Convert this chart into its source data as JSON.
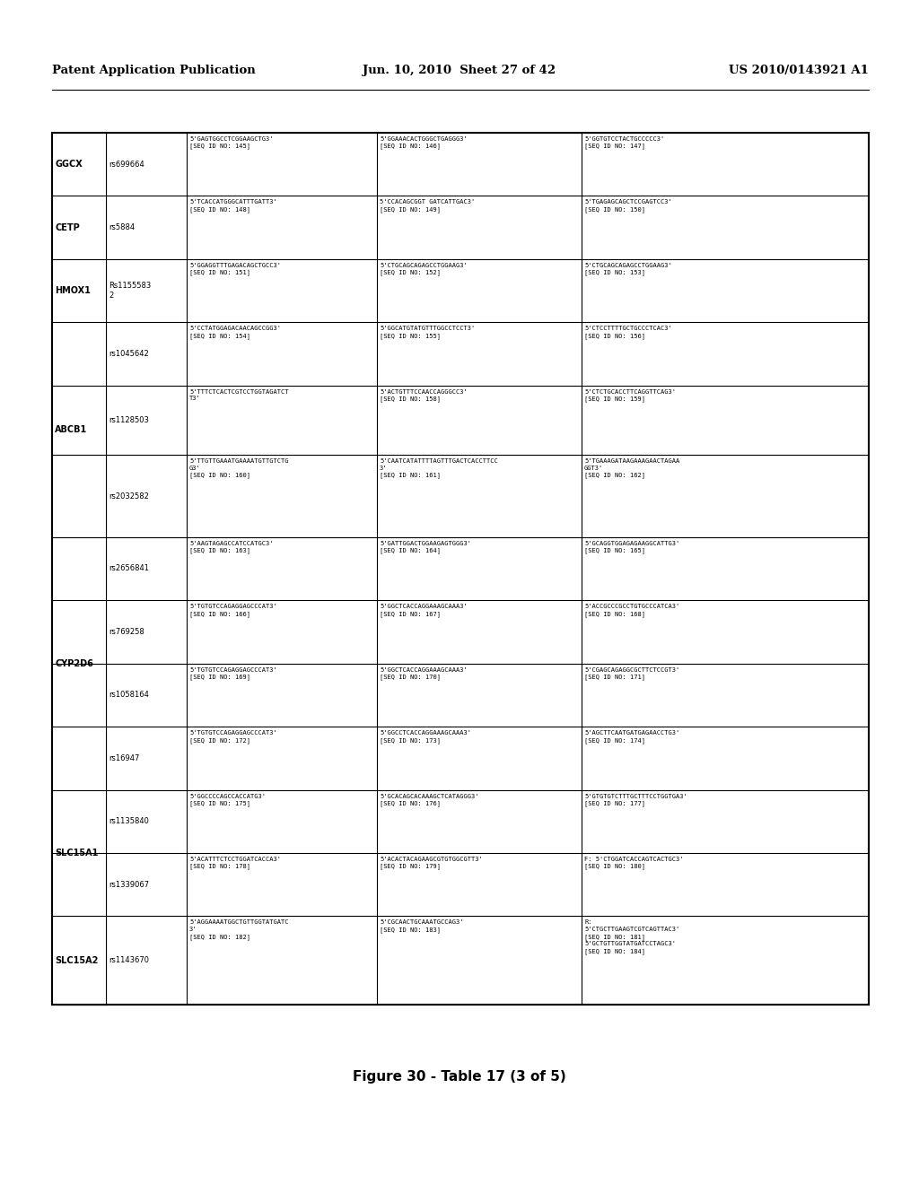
{
  "header_left": "Patent Application Publication",
  "header_center": "Jun. 10, 2010  Sheet 27 of 42",
  "header_right": "US 2010/0143921 A1",
  "figure_caption": "Figure 30 - Table 17 (3 of 5)",
  "bg_color": "#ffffff",
  "text_color": "#000000",
  "table_rows": [
    {
      "gene": "GGCX",
      "snp": "rs699664",
      "c1": "5'GAGTGGCCTCGGAAGCTG3'\n[SEQ ID NO: 145]",
      "c2": "5'GGAAACACTGGGCTGAGGG3'\n[SEQ ID NO: 146]",
      "c3": "5'GGTGTCCTACTGCCCCC3'\n[SEQ ID NO: 147]"
    },
    {
      "gene": "CETP",
      "snp": "rs5884",
      "c1": "5'TCACCATGGGCATTTGATT3'\n[SEQ ID NO: 148]",
      "c2": "5'CCACAGCGGT GATCATTGAC3'\n[SEQ ID NO: 149]",
      "c3": "5'TGAGAGCAGCTCCGAGTCC3'\n[SEQ ID NO: 150]"
    },
    {
      "gene": "HMOX1",
      "snp": "Rs1155583\n2",
      "c1": "5'GGAGGTTTGAGACAGCTGCC3'\n[SEQ ID NO: 151]",
      "c2": "5'CTGCAGCAGAGCCTGGAAG3'\n[SEQ ID NO: 152]",
      "c3": "5'CTGCAGCAGAGCCTGGAAG3'\n[SEQ ID NO: 153]"
    },
    {
      "gene": "ABCB1",
      "snp": "rs1045642",
      "c1": "5'CCTATGGAGACAACAGCCGG3'\n[SEQ ID NO: 154]",
      "c2": "5'GGCATGTATGTTTGGCCTCCT3'\n[SEQ ID NO: 155]",
      "c3": "5'CTCCTTTTGCTGCCCTCAC3'\n[SEQ ID NO: 156]"
    },
    {
      "gene": "",
      "snp": "rs1128503",
      "c1": "5'TTTCTCACTCGTCCTGGTAGATCT\nT3'",
      "c2": "5'ACTGTTTCCAACCAGGGCC3'\n[SEQ ID NO: 158]",
      "c3": "5'CTCTGCACCTTCAGGTTCAG3'\n[SEQ ID NO: 159]"
    },
    {
      "gene": "",
      "snp": "rs2032582",
      "c1": "5'TTGTTGAAATGAAAATGTTGTCTG\nG3'\n[SEQ ID NO: 160]",
      "c2": "5'CAATCATATTTTAGTTTGACTCACCTTCC\n3'\n[SEQ ID NO: 161]",
      "c3": "5'TGAAAGATAAGAAAGAACTAGAA\nGGT3'\n[SEQ ID NO: 162]"
    },
    {
      "gene": "CYP2D6",
      "snp": "rs2656841",
      "c1": "5'AAGTAGAGCCATCCATGC3'\n[SEQ ID NO: 163]",
      "c2": "5'GATTGGACTGGAAGAGTGGG3'\n[SEQ ID NO: 164]",
      "c3": "5'GCAGGTGGAGAGAAGGCATTG3'\n[SEQ ID NO: 165]"
    },
    {
      "gene": "",
      "snp": "rs769258",
      "c1": "5'TGTGTCCAGAGGAGCCCAT3'\n[SEQ ID NO: 166]",
      "c2": "5'GGCTCACCAGGAAAGCAAA3'\n[SEQ ID NO: 167]",
      "c3": "5'ACCGCCCGCCTGTGCCCATCA3'\n[SEQ ID NO: 168]"
    },
    {
      "gene": "",
      "snp": "rs1058164",
      "c1": "5'TGTGTCCAGAGGAGCCCAT3'\n[SEQ ID NO: 169]",
      "c2": "5'GGCTCACCAGGAAAGCAAA3'\n[SEQ ID NO: 170]",
      "c3": "5'CGAGCAGAGGCGCTTCTCCGT3'\n[SEQ ID NO: 171]"
    },
    {
      "gene": "",
      "snp": "rs16947",
      "c1": "5'TGTGTCCAGAGGAGCCCAT3'\n[SEQ ID NO: 172]",
      "c2": "5'GGCCTCACCAGGAAAGCAAA3'\n[SEQ ID NO: 173]",
      "c3": "5'AGCTTCAATGATGAGAACCTG3'\n[SEQ ID NO: 174]"
    },
    {
      "gene": "SLC15A1",
      "snp": "rs1135840",
      "c1": "5'GGCCCCAGCCACCATG3'\n[SEQ ID NO: 175]",
      "c2": "5'GCACAGCACAAAGCTCATAGGG3'\n[SEQ ID NO: 176]",
      "c3": "5'GTGTGTCTTTGCTTTCCTGGTGA3'\n[SEQ ID NO: 177]"
    },
    {
      "gene": "",
      "snp": "rs1339067",
      "c1": "5'ACATTTCTCCTGGATCACCA3'\n[SEQ ID NO: 178]",
      "c2": "5'ACACTACAGAAGCGTGTGGCGTT3'\n[SEQ ID NO: 179]",
      "c3": "F: 5'CTGGATCACCAGTCACTGC3'\n[SEQ ID NO: 180]"
    },
    {
      "gene": "SLC15A2",
      "snp": "rs1143670",
      "c1": "5'AGGAAAATGGCTGTTGGTATGATC\n3'\n[SEQ ID NO: 182]",
      "c2": "5'CGCAACTGCAAATGCCAG3'\n[SEQ ID NO: 183]",
      "c3": "R:\n5'CTGCTTGAAGTCGTCAGTTAC3'\n[SEQ ID NO: 181]\n5'GCTGTTGGTATGATCCTAGC3'\n[SEQ ID NO: 184]"
    }
  ],
  "gene_merges": [
    {
      "name": "GGCX",
      "rows": [
        0
      ]
    },
    {
      "name": "CETP",
      "rows": [
        1
      ]
    },
    {
      "name": "HMOX1",
      "rows": [
        2
      ]
    },
    {
      "name": "ABCB1",
      "rows": [
        3,
        4,
        5
      ]
    },
    {
      "name": "CYP2D6",
      "rows": [
        6,
        7,
        8,
        9
      ]
    },
    {
      "name": "SLC15A1",
      "rows": [
        10,
        11
      ]
    },
    {
      "name": "SLC15A2",
      "rows": [
        12
      ]
    }
  ],
  "row_heights_rel": [
    1.0,
    1.0,
    1.0,
    1.0,
    1.1,
    1.3,
    1.0,
    1.0,
    1.0,
    1.0,
    1.0,
    1.0,
    1.4
  ]
}
